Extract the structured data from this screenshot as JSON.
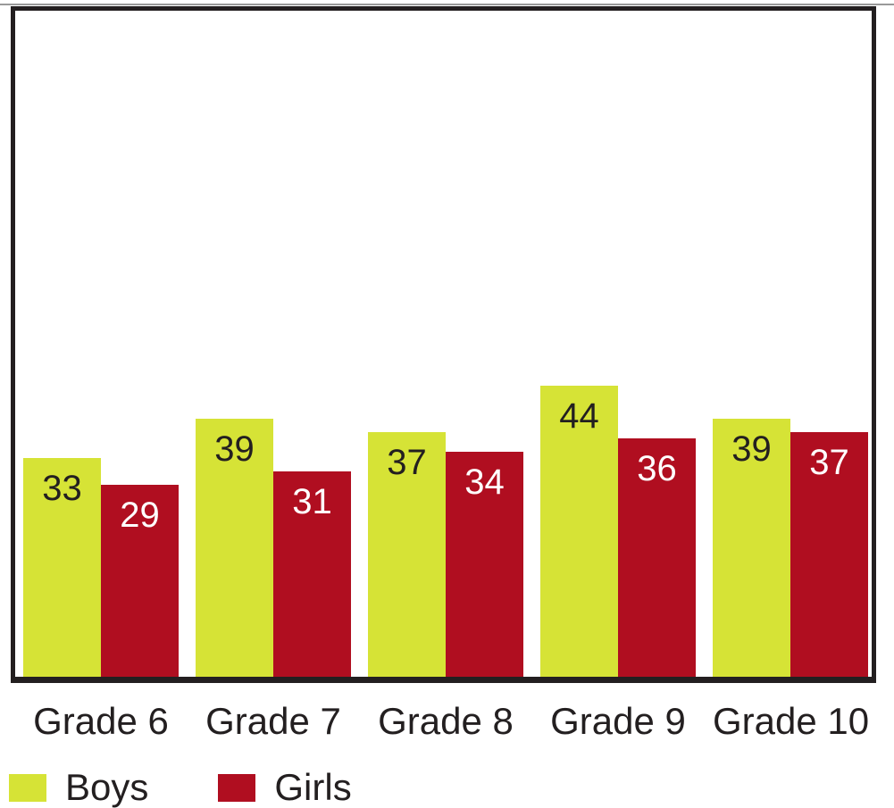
{
  "chart_data": {
    "type": "bar",
    "title": "",
    "xlabel": "",
    "ylabel": "",
    "categories": [
      "Grade 6",
      "Grade 7",
      "Grade 8",
      "Grade 9",
      "Grade 10"
    ],
    "series": [
      {
        "name": "Boys",
        "values": [
          33,
          39,
          37,
          44,
          39
        ],
        "color": "#d6e336",
        "value_label_color": "#231f20"
      },
      {
        "name": "Girls",
        "values": [
          29,
          31,
          34,
          36,
          37
        ],
        "color": "#b00e20",
        "value_label_color": "#ffffff"
      }
    ],
    "ylim": [
      0,
      100
    ],
    "grid": false,
    "y_axis_ticks_visible": false,
    "value_labels": "inside-top",
    "legend_position": "bottom-left",
    "frame_color": "#231f20",
    "background_color": "#ffffff"
  }
}
